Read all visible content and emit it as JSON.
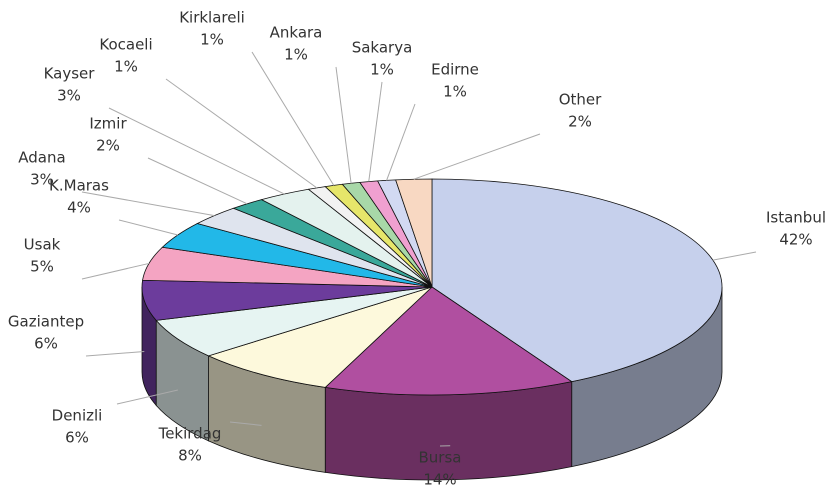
{
  "chart_data": {
    "type": "pie3d",
    "categories": [
      "Istanbul",
      "Bursa",
      "Tekirdag",
      "Denizli",
      "Gaziantep",
      "Usak",
      "K.Maras",
      "Adana",
      "Izmir",
      "Kayser",
      "Kocaeli",
      "Kirklareli",
      "Ankara",
      "Sakarya",
      "Edirne",
      "Other"
    ],
    "values": [
      42,
      14,
      8,
      6,
      6,
      5,
      4,
      3,
      2,
      3,
      1,
      1,
      1,
      1,
      1,
      2
    ],
    "value_labels": [
      "42%",
      "14%",
      "8%",
      "6%",
      "6%",
      "5%",
      "4%",
      "3%",
      "2%",
      "3%",
      "1%",
      "1%",
      "1%",
      "1%",
      "1%",
      "2%"
    ],
    "colors": [
      "#c6d0ec",
      "#b04fa0",
      "#fdf9dc",
      "#e6f4f2",
      "#6c3c9c",
      "#f4a4c2",
      "#22b8e8",
      "#dfe4ee",
      "#3aa89a",
      "#e4f2ee",
      "#f2f2f2",
      "#e6e66a",
      "#a8d8a8",
      "#f0a0d0",
      "#d2d9f2",
      "#f8d8c2"
    ]
  }
}
